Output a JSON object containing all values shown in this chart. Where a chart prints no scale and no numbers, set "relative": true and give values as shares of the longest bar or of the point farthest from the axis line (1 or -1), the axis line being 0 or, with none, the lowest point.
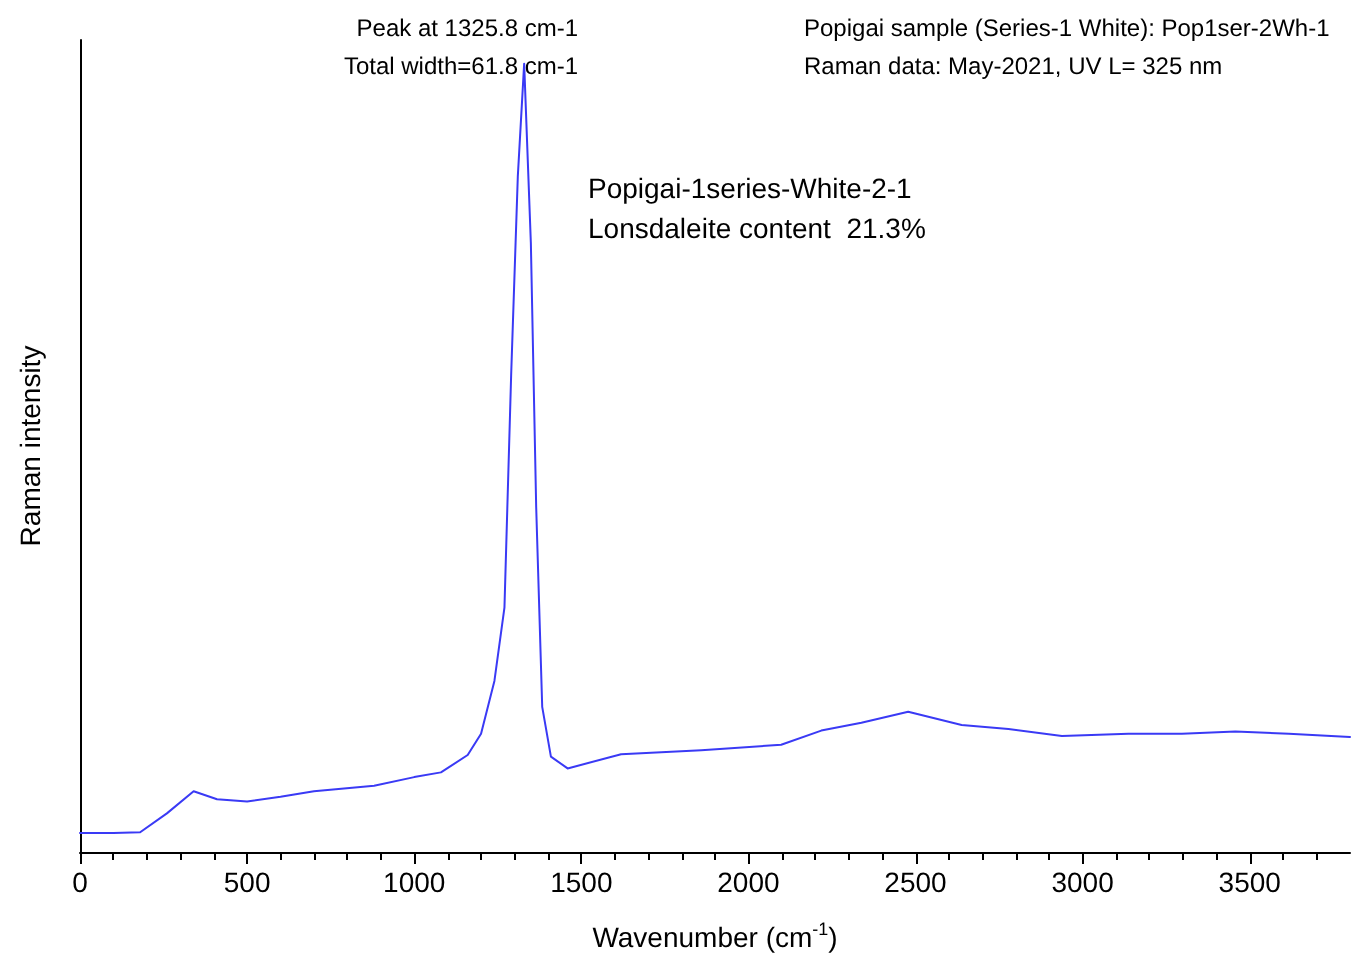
{
  "chart_data": {
    "type": "line",
    "relative": true,
    "xlabel": "Wavenumber (cm$^{-1}$)",
    "ylabel": "Raman intensity",
    "annotations": [
      "Peak at 1325.8 cm-1",
      "Total width=61.8 cm-1",
      "Popigai sample (Series-1 White): Pop1ser-2Wh-1",
      "Raman data: May-2021, UV L= 325 nm",
      "Popigai-1series-White-2-1",
      "Lonsdaleite content  21.3%"
    ],
    "x": [
      0,
      100,
      180,
      260,
      340,
      410,
      500,
      600,
      700,
      880,
      1000,
      1080,
      1160,
      1200,
      1240,
      1270,
      1290,
      1310,
      1329,
      1349,
      1365,
      1383,
      1409,
      1459,
      1619,
      1859,
      2098,
      2218,
      2338,
      2478,
      2638,
      2778,
      2938,
      3137,
      3297,
      3457,
      3617,
      3800
    ],
    "series": [
      {
        "color": "#3a3af5",
        "values": [
          0.024,
          0.024,
          0.025,
          0.049,
          0.077,
          0.067,
          0.064,
          0.07,
          0.077,
          0.084,
          0.095,
          0.101,
          0.123,
          0.15,
          0.217,
          0.31,
          0.604,
          0.857,
          1.0,
          0.773,
          0.437,
          0.184,
          0.121,
          0.106,
          0.124,
          0.129,
          0.136,
          0.154,
          0.164,
          0.178,
          0.161,
          0.156,
          0.147,
          0.15,
          0.15,
          0.153,
          0.15,
          0.146
        ]
      }
    ],
    "xlim": [
      0,
      3800
    ],
    "xticks": [
      0,
      500,
      1000,
      1500,
      2000,
      2500,
      3000,
      3500
    ],
    "grid": false,
    "marker": "none",
    "line_style": "solid"
  }
}
